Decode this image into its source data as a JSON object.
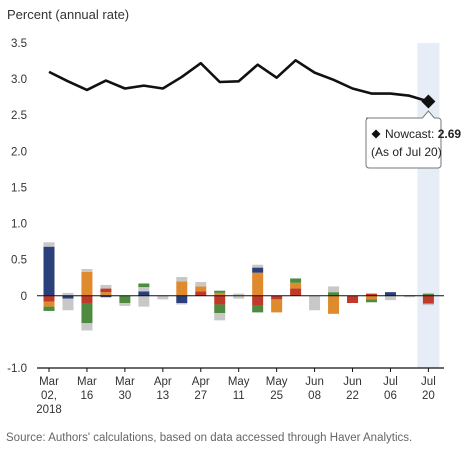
{
  "chart_data": {
    "type": "line",
    "ylabel": "Percent (annual rate)",
    "ylim": [
      -1.0,
      3.5
    ],
    "yticks": [
      "3.5",
      "3.0",
      "2.5",
      "2.0",
      "1.5",
      "1.0",
      "0.5",
      "0",
      "-1.0"
    ],
    "ytick_values": [
      3.5,
      3.0,
      2.5,
      2.0,
      1.5,
      1.0,
      0.5,
      0,
      -1.0
    ],
    "x_tick_labels": [
      {
        "line1": "Mar",
        "line2": "02,",
        "line3": "2018"
      },
      {
        "line1": "Mar",
        "line2": "16",
        "line3": ""
      },
      {
        "line1": "Mar",
        "line2": "30",
        "line3": ""
      },
      {
        "line1": "Apr",
        "line2": "13",
        "line3": ""
      },
      {
        "line1": "Apr",
        "line2": "27",
        "line3": ""
      },
      {
        "line1": "May",
        "line2": "11",
        "line3": ""
      },
      {
        "line1": "May",
        "line2": "25",
        "line3": ""
      },
      {
        "line1": "Jun",
        "line2": "08",
        "line3": ""
      },
      {
        "line1": "Jun",
        "line2": "22",
        "line3": ""
      },
      {
        "line1": "Jul",
        "line2": "06",
        "line3": ""
      },
      {
        "line1": "Jul",
        "line2": "20",
        "line3": ""
      }
    ],
    "nowcast_series": [
      3.1,
      2.97,
      2.85,
      2.98,
      2.87,
      2.91,
      2.87,
      3.03,
      3.22,
      2.96,
      2.97,
      3.2,
      3.02,
      3.26,
      3.09,
      2.99,
      2.87,
      2.8,
      2.8,
      2.77,
      2.69
    ],
    "contributions": [
      {
        "pos": [
          [
            0.68,
            "#2b3f7a"
          ],
          [
            0.06,
            "#c8c8c8"
          ]
        ],
        "neg": [
          [
            -0.08,
            "#c0392b"
          ],
          [
            -0.07,
            "#e08a2e"
          ],
          [
            -0.06,
            "#4e8a3f"
          ]
        ]
      },
      {
        "pos": [
          [
            0.04,
            "#c8c8c8"
          ]
        ],
        "neg": [
          [
            -0.04,
            "#2b3f7a"
          ],
          [
            -0.16,
            "#c8c8c8"
          ]
        ]
      },
      {
        "pos": [
          [
            0.33,
            "#e08a2e"
          ],
          [
            0.04,
            "#c8c8c8"
          ]
        ],
        "neg": [
          [
            -0.1,
            "#c0392b"
          ],
          [
            -0.28,
            "#4e8a3f"
          ],
          [
            -0.1,
            "#c8c8c8"
          ]
        ]
      },
      {
        "pos": [
          [
            0.05,
            "#e08a2e"
          ],
          [
            0.05,
            "#c0392b"
          ],
          [
            0.05,
            "#c8c8c8"
          ]
        ],
        "neg": [
          [
            -0.02,
            "#2b3f7a"
          ]
        ]
      },
      {
        "pos": [],
        "neg": [
          [
            -0.1,
            "#4e8a3f"
          ],
          [
            -0.04,
            "#c8c8c8"
          ]
        ]
      },
      {
        "pos": [
          [
            0.06,
            "#2b3f7a"
          ],
          [
            0.06,
            "#c8c8c8"
          ],
          [
            0.05,
            "#4e8a3f"
          ]
        ],
        "neg": [
          [
            -0.15,
            "#c8c8c8"
          ]
        ]
      },
      {
        "pos": [],
        "neg": [
          [
            -0.05,
            "#c8c8c8"
          ]
        ]
      },
      {
        "pos": [
          [
            0.2,
            "#e08a2e"
          ],
          [
            0.06,
            "#c8c8c8"
          ]
        ],
        "neg": [
          [
            -0.1,
            "#2b3f7a"
          ],
          [
            -0.02,
            "#c8c8c8"
          ]
        ]
      },
      {
        "pos": [
          [
            0.06,
            "#c0392b"
          ],
          [
            0.07,
            "#e08a2e"
          ],
          [
            0.06,
            "#c8c8c8"
          ]
        ],
        "neg": []
      },
      {
        "pos": [
          [
            0.04,
            "#e08a2e"
          ],
          [
            0.03,
            "#4e8a3f"
          ]
        ],
        "neg": [
          [
            -0.12,
            "#c0392b"
          ],
          [
            -0.12,
            "#4e8a3f"
          ],
          [
            -0.1,
            "#c8c8c8"
          ]
        ]
      },
      {
        "pos": [
          [
            0.03,
            "#c8c8c8"
          ]
        ],
        "neg": [
          [
            -0.04,
            "#c8c8c8"
          ]
        ]
      },
      {
        "pos": [
          [
            0.32,
            "#e08a2e"
          ],
          [
            0.07,
            "#2b3f7a"
          ],
          [
            0.04,
            "#c8c8c8"
          ]
        ],
        "neg": [
          [
            -0.14,
            "#c0392b"
          ],
          [
            -0.09,
            "#4e8a3f"
          ]
        ]
      },
      {
        "pos": [],
        "neg": [
          [
            -0.05,
            "#c0392b"
          ],
          [
            -0.18,
            "#e08a2e"
          ]
        ]
      },
      {
        "pos": [
          [
            0.1,
            "#c0392b"
          ],
          [
            0.08,
            "#e08a2e"
          ],
          [
            0.06,
            "#4e8a3f"
          ]
        ],
        "neg": []
      },
      {
        "pos": [],
        "neg": [
          [
            -0.2,
            "#c8c8c8"
          ]
        ]
      },
      {
        "pos": [
          [
            0.05,
            "#4e8a3f"
          ],
          [
            0.08,
            "#c8c8c8"
          ]
        ],
        "neg": [
          [
            -0.25,
            "#e08a2e"
          ]
        ]
      },
      {
        "pos": [],
        "neg": [
          [
            -0.1,
            "#c0392b"
          ]
        ]
      },
      {
        "pos": [
          [
            0.03,
            "#c0392b"
          ]
        ],
        "neg": [
          [
            -0.05,
            "#e08a2e"
          ],
          [
            -0.04,
            "#4e8a3f"
          ]
        ]
      },
      {
        "pos": [
          [
            0.05,
            "#2b3f7a"
          ]
        ],
        "neg": [
          [
            -0.06,
            "#c8c8c8"
          ]
        ]
      },
      {
        "pos": [
          [
            0.01,
            "#c8c8c8"
          ]
        ],
        "neg": [
          [
            -0.02,
            "#c8c8c8"
          ]
        ]
      },
      {
        "pos": [
          [
            0.03,
            "#4e8a3f"
          ]
        ],
        "neg": [
          [
            -0.11,
            "#c0392b"
          ],
          [
            -0.02,
            "#c8c8c8"
          ]
        ]
      }
    ],
    "tooltip": {
      "label": "Nowcast: ",
      "value": "2.69",
      "note": "(As of Jul 20)"
    },
    "colors": {
      "line": "#111111",
      "highlight": "#e6edf6",
      "axis": "#111111"
    },
    "source": "Source: Authors' calculations, based on data accessed through Haver Analytics."
  }
}
